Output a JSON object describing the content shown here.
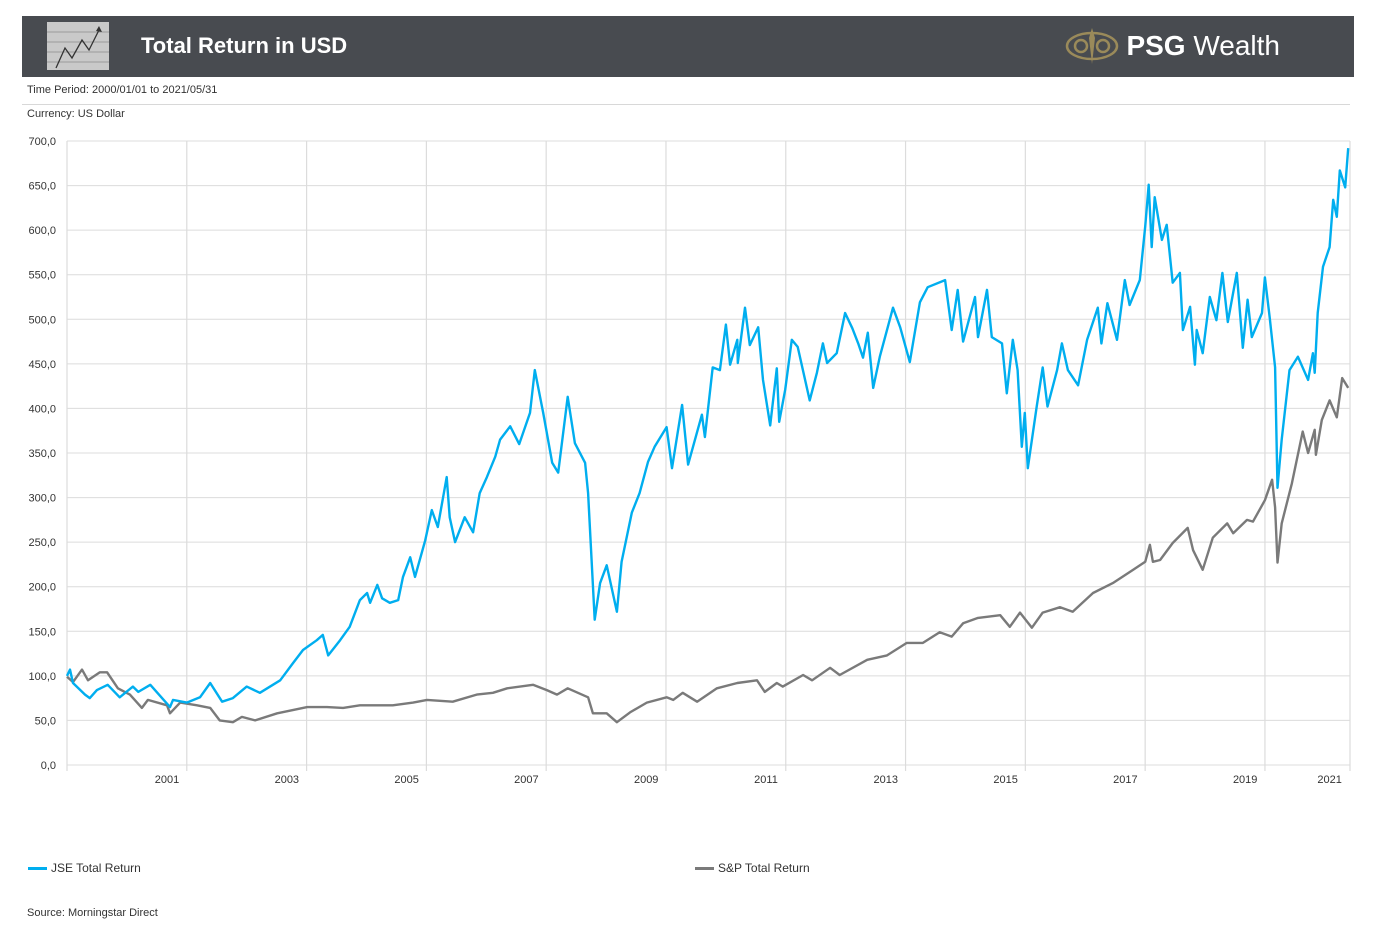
{
  "header": {
    "title": "Total Return in USD",
    "logo_brand": "PSG",
    "logo_word": "Wealth"
  },
  "meta": {
    "time_period": "Time Period: 2000/01/01 to 2021/05/31",
    "currency": "Currency: US Dollar"
  },
  "source": "Source: Morningstar Direct",
  "colors": {
    "header_bg": "#484b50",
    "jse": "#00aeef",
    "sp": "#7a7a7a",
    "grid": "#dcdcdc",
    "logo_gold": "#9a8a5a"
  },
  "chart_data": {
    "type": "line",
    "title": "Total Return in USD",
    "xlabel": "",
    "ylabel": "",
    "xlim": [
      2000.0,
      2021.42
    ],
    "ylim": [
      0,
      700
    ],
    "grid": true,
    "legend_position": "bottom",
    "yticks": [
      "0,0",
      "50,0",
      "100,0",
      "150,0",
      "200,0",
      "250,0",
      "300,0",
      "350,0",
      "400,0",
      "450,0",
      "500,0",
      "550,0",
      "600,0",
      "650,0",
      "700,0"
    ],
    "xgrid_years": [
      2000,
      2002,
      2004,
      2006,
      2008,
      2010,
      2012,
      2014,
      2016,
      2018,
      2020
    ],
    "xticks": [
      {
        "label": "2001",
        "at": 2001.67
      },
      {
        "label": "2003",
        "at": 2003.67
      },
      {
        "label": "2005",
        "at": 2005.67
      },
      {
        "label": "2007",
        "at": 2007.67
      },
      {
        "label": "2009",
        "at": 2009.67
      },
      {
        "label": "2011",
        "at": 2011.67
      },
      {
        "label": "2013",
        "at": 2013.67
      },
      {
        "label": "2015",
        "at": 2015.67
      },
      {
        "label": "2017",
        "at": 2017.67
      },
      {
        "label": "2019",
        "at": 2019.67
      },
      {
        "label": "2021",
        "at": 2021.08
      }
    ],
    "series": [
      {
        "name": "JSE Total Return",
        "color": "#00aeef",
        "points": [
          [
            2000.0,
            100
          ],
          [
            2000.05,
            107
          ],
          [
            2000.1,
            92
          ],
          [
            2000.3,
            79
          ],
          [
            2000.38,
            75
          ],
          [
            2000.5,
            84
          ],
          [
            2000.68,
            90
          ],
          [
            2000.88,
            76
          ],
          [
            2001.1,
            88
          ],
          [
            2001.19,
            82
          ],
          [
            2001.39,
            90
          ],
          [
            2001.72,
            65
          ],
          [
            2001.77,
            73
          ],
          [
            2002.0,
            70
          ],
          [
            2002.22,
            76
          ],
          [
            2002.39,
            92
          ],
          [
            2002.59,
            71
          ],
          [
            2002.77,
            75
          ],
          [
            2003.0,
            88
          ],
          [
            2003.22,
            81
          ],
          [
            2003.56,
            95
          ],
          [
            2003.77,
            114
          ],
          [
            2003.94,
            129
          ],
          [
            2004.17,
            140
          ],
          [
            2004.27,
            146
          ],
          [
            2004.36,
            123
          ],
          [
            2004.56,
            140
          ],
          [
            2004.72,
            155
          ],
          [
            2004.89,
            185
          ],
          [
            2005.01,
            193
          ],
          [
            2005.06,
            182
          ],
          [
            2005.18,
            202
          ],
          [
            2005.26,
            187
          ],
          [
            2005.39,
            182
          ],
          [
            2005.53,
            185
          ],
          [
            2005.61,
            211
          ],
          [
            2005.73,
            233
          ],
          [
            2005.81,
            211
          ],
          [
            2005.98,
            252
          ],
          [
            2006.09,
            286
          ],
          [
            2006.19,
            267
          ],
          [
            2006.34,
            323
          ],
          [
            2006.39,
            278
          ],
          [
            2006.48,
            250
          ],
          [
            2006.64,
            278
          ],
          [
            2006.78,
            261
          ],
          [
            2006.89,
            305
          ],
          [
            2007.01,
            323
          ],
          [
            2007.15,
            346
          ],
          [
            2007.23,
            365
          ],
          [
            2007.4,
            380
          ],
          [
            2007.55,
            360
          ],
          [
            2007.73,
            395
          ],
          [
            2007.81,
            443
          ],
          [
            2007.95,
            395
          ],
          [
            2008.1,
            339
          ],
          [
            2008.2,
            328
          ],
          [
            2008.36,
            413
          ],
          [
            2008.48,
            361
          ],
          [
            2008.65,
            339
          ],
          [
            2008.7,
            305
          ],
          [
            2008.81,
            163
          ],
          [
            2008.9,
            204
          ],
          [
            2009.01,
            224
          ],
          [
            2009.18,
            172
          ],
          [
            2009.26,
            228
          ],
          [
            2009.43,
            283
          ],
          [
            2009.56,
            305
          ],
          [
            2009.7,
            340
          ],
          [
            2009.81,
            357
          ],
          [
            2010.01,
            379
          ],
          [
            2010.1,
            333
          ],
          [
            2010.27,
            404
          ],
          [
            2010.37,
            337
          ],
          [
            2010.6,
            393
          ],
          [
            2010.65,
            368
          ],
          [
            2010.78,
            446
          ],
          [
            2010.9,
            443
          ],
          [
            2011.0,
            494
          ],
          [
            2011.07,
            449
          ],
          [
            2011.19,
            477
          ],
          [
            2011.2,
            451
          ],
          [
            2011.32,
            513
          ],
          [
            2011.4,
            471
          ],
          [
            2011.54,
            491
          ],
          [
            2011.62,
            432
          ],
          [
            2011.74,
            381
          ],
          [
            2011.85,
            445
          ],
          [
            2011.89,
            385
          ],
          [
            2011.99,
            421
          ],
          [
            2012.1,
            477
          ],
          [
            2012.2,
            469
          ],
          [
            2012.4,
            409
          ],
          [
            2012.52,
            440
          ],
          [
            2012.62,
            473
          ],
          [
            2012.69,
            451
          ],
          [
            2012.85,
            462
          ],
          [
            2012.99,
            507
          ],
          [
            2013.11,
            490
          ],
          [
            2013.21,
            473
          ],
          [
            2013.29,
            457
          ],
          [
            2013.37,
            485
          ],
          [
            2013.46,
            423
          ],
          [
            2013.57,
            458
          ],
          [
            2013.79,
            513
          ],
          [
            2013.91,
            491
          ],
          [
            2014.07,
            452
          ],
          [
            2014.24,
            519
          ],
          [
            2014.37,
            536
          ],
          [
            2014.66,
            544
          ],
          [
            2014.77,
            488
          ],
          [
            2014.87,
            533
          ],
          [
            2014.96,
            475
          ],
          [
            2015.16,
            525
          ],
          [
            2015.21,
            480
          ],
          [
            2015.36,
            533
          ],
          [
            2015.44,
            480
          ],
          [
            2015.61,
            473
          ],
          [
            2015.69,
            417
          ],
          [
            2015.79,
            477
          ],
          [
            2015.87,
            443
          ],
          [
            2015.94,
            357
          ],
          [
            2015.99,
            395
          ],
          [
            2016.04,
            333
          ],
          [
            2016.19,
            402
          ],
          [
            2016.29,
            446
          ],
          [
            2016.37,
            402
          ],
          [
            2016.53,
            443
          ],
          [
            2016.61,
            473
          ],
          [
            2016.71,
            443
          ],
          [
            2016.88,
            426
          ],
          [
            2017.03,
            477
          ],
          [
            2017.21,
            513
          ],
          [
            2017.27,
            473
          ],
          [
            2017.37,
            518
          ],
          [
            2017.53,
            477
          ],
          [
            2017.66,
            544
          ],
          [
            2017.74,
            516
          ],
          [
            2017.91,
            544
          ],
          [
            2018.0,
            604
          ],
          [
            2018.06,
            651
          ],
          [
            2018.11,
            581
          ],
          [
            2018.16,
            637
          ],
          [
            2018.28,
            589
          ],
          [
            2018.36,
            606
          ],
          [
            2018.46,
            541
          ],
          [
            2018.58,
            552
          ],
          [
            2018.63,
            488
          ],
          [
            2018.75,
            514
          ],
          [
            2018.83,
            449
          ],
          [
            2018.86,
            488
          ],
          [
            2018.96,
            462
          ],
          [
            2019.08,
            525
          ],
          [
            2019.19,
            499
          ],
          [
            2019.29,
            552
          ],
          [
            2019.38,
            497
          ],
          [
            2019.53,
            552
          ],
          [
            2019.63,
            468
          ],
          [
            2019.71,
            522
          ],
          [
            2019.78,
            480
          ],
          [
            2019.95,
            507
          ],
          [
            2020.0,
            547
          ],
          [
            2020.08,
            502
          ],
          [
            2020.17,
            446
          ],
          [
            2020.21,
            311
          ],
          [
            2020.28,
            365
          ],
          [
            2020.41,
            443
          ],
          [
            2020.55,
            458
          ],
          [
            2020.72,
            432
          ],
          [
            2020.8,
            462
          ],
          [
            2020.83,
            440
          ],
          [
            2020.88,
            507
          ],
          [
            2020.97,
            559
          ],
          [
            2021.08,
            581
          ],
          [
            2021.14,
            634
          ],
          [
            2021.2,
            615
          ],
          [
            2021.25,
            667
          ],
          [
            2021.34,
            648
          ],
          [
            2021.39,
            692
          ]
        ]
      },
      {
        "name": "S&P Total Return",
        "color": "#7a7a7a",
        "points": [
          [
            2000.0,
            99
          ],
          [
            2000.1,
            93
          ],
          [
            2000.25,
            107
          ],
          [
            2000.35,
            95
          ],
          [
            2000.55,
            104
          ],
          [
            2000.67,
            104
          ],
          [
            2000.85,
            86
          ],
          [
            2001.05,
            79
          ],
          [
            2001.25,
            64
          ],
          [
            2001.35,
            73
          ],
          [
            2001.67,
            67
          ],
          [
            2001.72,
            58
          ],
          [
            2001.89,
            70
          ],
          [
            2002.17,
            67
          ],
          [
            2002.39,
            64
          ],
          [
            2002.55,
            50
          ],
          [
            2002.77,
            48
          ],
          [
            2002.92,
            54
          ],
          [
            2003.14,
            50
          ],
          [
            2003.51,
            58
          ],
          [
            2004.01,
            65
          ],
          [
            2004.34,
            65
          ],
          [
            2004.61,
            64
          ],
          [
            2004.89,
            67
          ],
          [
            2005.44,
            67
          ],
          [
            2005.78,
            70
          ],
          [
            2006.01,
            73
          ],
          [
            2006.44,
            71
          ],
          [
            2006.84,
            79
          ],
          [
            2007.11,
            81
          ],
          [
            2007.35,
            86
          ],
          [
            2007.78,
            90
          ],
          [
            2008.01,
            84
          ],
          [
            2008.18,
            79
          ],
          [
            2008.36,
            86
          ],
          [
            2008.7,
            76
          ],
          [
            2008.78,
            58
          ],
          [
            2009.01,
            58
          ],
          [
            2009.18,
            48
          ],
          [
            2009.4,
            59
          ],
          [
            2009.68,
            70
          ],
          [
            2010.01,
            76
          ],
          [
            2010.12,
            73
          ],
          [
            2010.28,
            81
          ],
          [
            2010.52,
            71
          ],
          [
            2010.85,
            86
          ],
          [
            2011.19,
            92
          ],
          [
            2011.52,
            95
          ],
          [
            2011.65,
            82
          ],
          [
            2011.85,
            92
          ],
          [
            2011.95,
            88
          ],
          [
            2012.29,
            101
          ],
          [
            2012.44,
            95
          ],
          [
            2012.74,
            109
          ],
          [
            2012.9,
            101
          ],
          [
            2013.36,
            118
          ],
          [
            2013.69,
            123
          ],
          [
            2014.02,
            137
          ],
          [
            2014.29,
            137
          ],
          [
            2014.57,
            149
          ],
          [
            2014.77,
            144
          ],
          [
            2014.96,
            159
          ],
          [
            2015.21,
            165
          ],
          [
            2015.58,
            168
          ],
          [
            2015.74,
            155
          ],
          [
            2015.91,
            171
          ],
          [
            2016.11,
            154
          ],
          [
            2016.29,
            171
          ],
          [
            2016.58,
            177
          ],
          [
            2016.79,
            172
          ],
          [
            2017.13,
            193
          ],
          [
            2017.46,
            204
          ],
          [
            2017.8,
            219
          ],
          [
            2018.0,
            228
          ],
          [
            2018.08,
            247
          ],
          [
            2018.13,
            228
          ],
          [
            2018.25,
            230
          ],
          [
            2018.46,
            249
          ],
          [
            2018.71,
            266
          ],
          [
            2018.8,
            241
          ],
          [
            2018.96,
            219
          ],
          [
            2019.13,
            255
          ],
          [
            2019.37,
            271
          ],
          [
            2019.47,
            260
          ],
          [
            2019.7,
            275
          ],
          [
            2019.8,
            273
          ],
          [
            2020.0,
            297
          ],
          [
            2020.12,
            320
          ],
          [
            2020.17,
            289
          ],
          [
            2020.21,
            227
          ],
          [
            2020.28,
            271
          ],
          [
            2020.45,
            316
          ],
          [
            2020.63,
            374
          ],
          [
            2020.72,
            350
          ],
          [
            2020.83,
            376
          ],
          [
            2020.85,
            348
          ],
          [
            2020.95,
            387
          ],
          [
            2021.08,
            409
          ],
          [
            2021.2,
            390
          ],
          [
            2021.29,
            434
          ],
          [
            2021.39,
            423
          ]
        ]
      }
    ]
  }
}
